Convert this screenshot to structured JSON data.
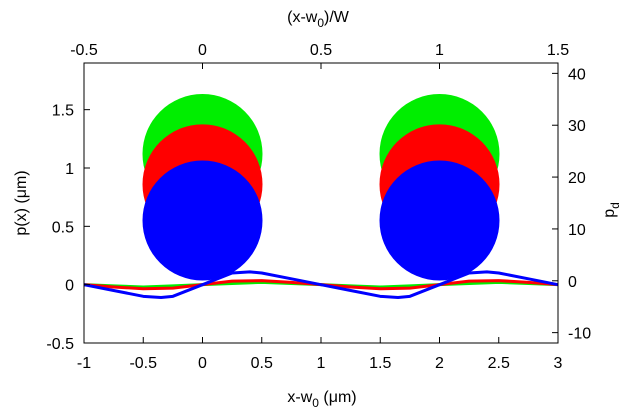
{
  "chart_data": {
    "type": "line",
    "bottom_axis": {
      "label_main": "x-w",
      "label_sub": "0",
      "label_tail": " (μm)",
      "range": [
        -1,
        3
      ],
      "ticks": [
        "-1",
        "-0.5",
        "0",
        "0.5",
        "1",
        "1.5",
        "2",
        "2.5",
        "3"
      ]
    },
    "top_axis": {
      "label_main": "(x-w",
      "label_sub": "0",
      "label_tail": ")/W",
      "range": [
        -0.5,
        1.5
      ],
      "ticks": [
        "-0.5",
        "0",
        "0.5",
        "1",
        "1.5"
      ]
    },
    "left_axis": {
      "label": "p(x) (μm)",
      "range": [
        -0.5,
        1.9
      ],
      "ticks": [
        "-0.5",
        "0",
        "0.5",
        "1",
        "1.5"
      ]
    },
    "right_axis": {
      "label_main": "p",
      "label_sub": "d",
      "range": [
        -12,
        42
      ],
      "ticks": [
        "-10",
        "0",
        "10",
        "20",
        "30",
        "40"
      ]
    },
    "circles": [
      {
        "color": "#00ee00",
        "cx": 0,
        "cy": 1.12
      },
      {
        "color": "#ff0000",
        "cx": 0,
        "cy": 0.86
      },
      {
        "color": "#0000ff",
        "cx": 0,
        "cy": 0.55
      },
      {
        "color": "#00ee00",
        "cx": 2,
        "cy": 1.12
      },
      {
        "color": "#ff0000",
        "cx": 2,
        "cy": 0.86
      },
      {
        "color": "#0000ff",
        "cx": 2,
        "cy": 0.55
      }
    ],
    "series": [
      {
        "color": "#00ee00",
        "x": [
          -1,
          -0.75,
          -0.5,
          -0.25,
          0,
          0.25,
          0.5,
          0.75,
          1,
          1.25,
          1.5,
          1.75,
          2,
          2.25,
          2.5,
          2.75,
          3
        ],
        "y": [
          0,
          -0.01,
          -0.02,
          -0.01,
          0,
          0.01,
          0.02,
          0.01,
          0,
          -0.01,
          -0.02,
          -0.01,
          0,
          0.01,
          0.02,
          0.01,
          0
        ]
      },
      {
        "color": "#ff0000",
        "x": [
          -1,
          -0.75,
          -0.5,
          -0.25,
          0,
          0.25,
          0.5,
          0.75,
          1,
          1.25,
          1.5,
          1.75,
          2,
          2.25,
          2.5,
          2.75,
          3
        ],
        "y": [
          0,
          -0.02,
          -0.035,
          -0.03,
          0,
          0.03,
          0.035,
          0.02,
          0,
          -0.02,
          -0.035,
          -0.03,
          0,
          0.03,
          0.035,
          0.02,
          0
        ]
      },
      {
        "color": "#0000ff",
        "x": [
          -1,
          -0.75,
          -0.5,
          -0.35,
          -0.25,
          0,
          0.25,
          0.4,
          0.5,
          0.75,
          1,
          1.25,
          1.5,
          1.65,
          1.75,
          2,
          2.25,
          2.4,
          2.5,
          2.75,
          3
        ],
        "y": [
          0,
          -0.05,
          -0.1,
          -0.11,
          -0.1,
          0,
          0.1,
          0.11,
          0.1,
          0.05,
          0,
          -0.05,
          -0.1,
          -0.11,
          -0.1,
          0,
          0.1,
          0.11,
          0.1,
          0.05,
          0
        ]
      }
    ]
  }
}
